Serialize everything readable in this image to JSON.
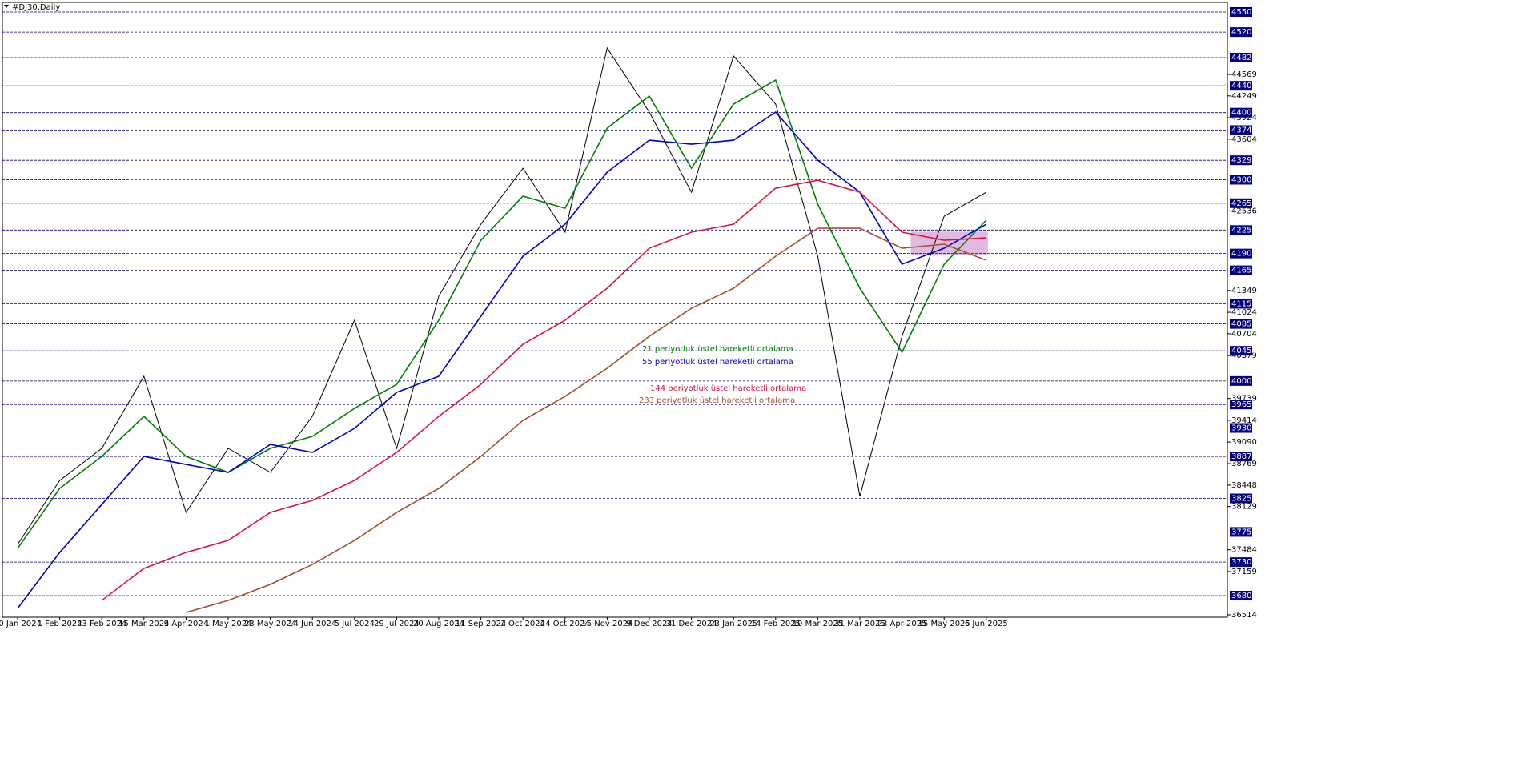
{
  "chart_data": {
    "type": "line",
    "title": "#DJ30,Daily",
    "categories": [
      "10 Jan 2024",
      "1 Feb 2024",
      "23 Feb 2024",
      "15 Mar 2024",
      "9 Apr 2024",
      "1 May 2024",
      "23 May 2024",
      "14 Jun 2024",
      "5 Jul 2024",
      "29 Jul 2024",
      "20 Aug 2024",
      "11 Sep 2024",
      "2 Oct 2024",
      "24 Oct 2024",
      "15 Nov 2024",
      "9 Dec 2024",
      "31 Dec 2024",
      "23 Jan 2025",
      "14 Feb 2025",
      "10 Mar 2025",
      "31 Mar 2025",
      "23 Apr 2025",
      "15 May 2025",
      "6 Jun 2025"
    ],
    "series": [
      {
        "color": "#000000",
        "values": [
          37564,
          38518,
          38996,
          40070,
          38041,
          38996,
          38638,
          39473,
          40905,
          38996,
          41263,
          42337,
          43172,
          42218,
          44962,
          44008,
          42814,
          44843,
          44127,
          41860,
          38280,
          40666,
          42456,
          42814
        ]
      },
      {
        "name": "21 periyotluk üstel hareketli ortalama",
        "color": "#008000",
        "values": [
          37504,
          38399,
          38876,
          39473,
          38876,
          38638,
          38996,
          39175,
          39592,
          39950,
          40905,
          42098,
          42755,
          42575,
          43769,
          44246,
          43172,
          44127,
          44485,
          42635,
          41382,
          40428,
          41740,
          42397
        ]
      },
      {
        "name": "55 periyotluk üstel hareketli ortalama",
        "color": "#0000cc",
        "values": [
          36609,
          37444,
          38160,
          38876,
          38757,
          38638,
          39055,
          38936,
          39294,
          39831,
          40070,
          40965,
          41860,
          42337,
          43113,
          43590,
          43530,
          43590,
          44008,
          43292,
          42814,
          41740,
          41979,
          42337
        ]
      },
      {
        "name": "144 periyotluk üstel hareketli ortalama",
        "color": "#dc143c",
        "values": [
          null,
          null,
          36728,
          37206,
          37444,
          37623,
          38041,
          38220,
          38518,
          38936,
          39473,
          39950,
          40547,
          40905,
          41382,
          41979,
          42218,
          42337,
          42874,
          42993,
          42814,
          42218,
          42098,
          42134
        ]
      },
      {
        "name": "233 periyotluk üstel hareketli ortalama",
        "color": "#a0522d",
        "values": [
          null,
          null,
          null,
          null,
          36549,
          36728,
          36967,
          37265,
          37623,
          38041,
          38399,
          38876,
          39413,
          39771,
          40189,
          40666,
          41084,
          41382,
          41860,
          42277,
          42277,
          41979,
          42039,
          41800
        ]
      }
    ],
    "ylim": [
      36478,
      45643
    ],
    "yticks": [
      44569,
      44249,
      43924,
      43604,
      42536,
      41349,
      41024,
      40704,
      40379,
      39739,
      39414,
      39090,
      38769,
      38448,
      38129,
      37484,
      37159,
      36514
    ],
    "levels": [
      45500,
      45200,
      44820,
      44400,
      44000,
      43740,
      43290,
      43000,
      42650,
      42250,
      41900,
      41650,
      41150,
      40850,
      40450,
      40000,
      39650,
      39300,
      38875,
      38250,
      37750,
      37300,
      36800
    ],
    "level_color": "#000080",
    "zone": [
      41884,
      42226
    ],
    "zone_color": "#d8a8d8"
  }
}
